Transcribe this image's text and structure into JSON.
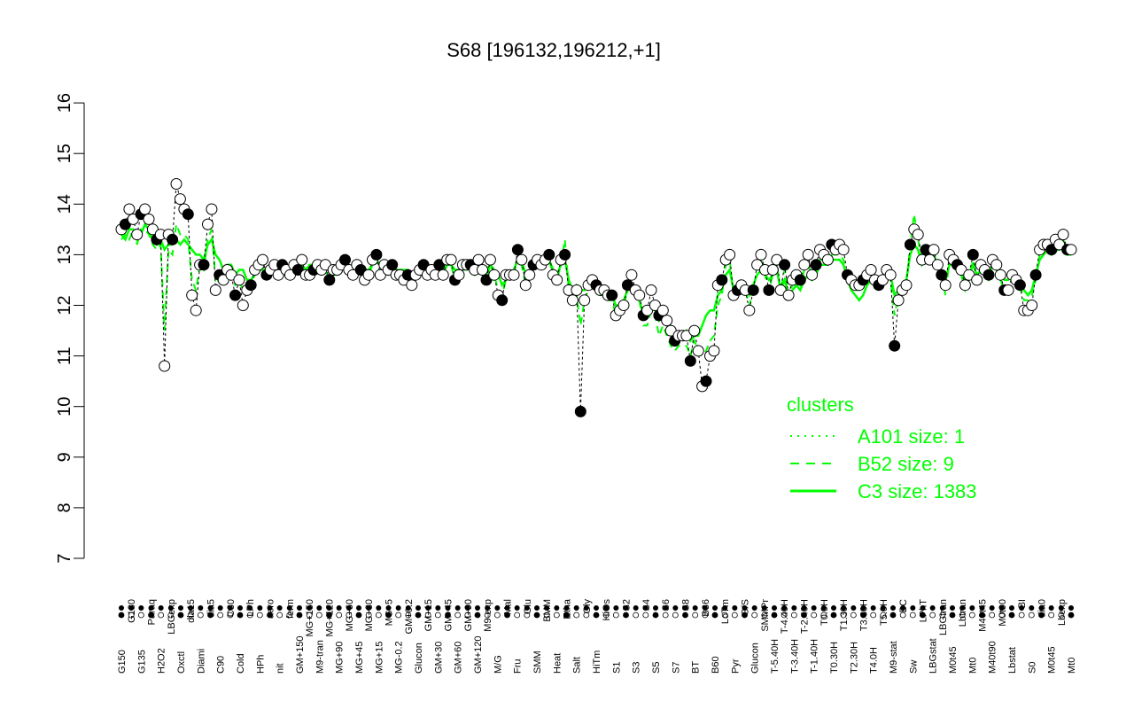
{
  "chart_data": {
    "type": "scatter",
    "title": "S68 [196132,196212,+1]",
    "xlabel": "",
    "ylabel": "",
    "ylim": [
      7,
      16
    ],
    "yticks": [
      7,
      8,
      9,
      10,
      11,
      12,
      13,
      14,
      15,
      16
    ],
    "grid": false,
    "point_colors": {
      "open": "#ffffff",
      "filled": "#000000",
      "edge": "#000000"
    },
    "line_color": "#00ff00",
    "xtick_labels": [
      "G150",
      "G180",
      "G135",
      "Paraq",
      "H2O2",
      "LBGexp",
      "Oxctl",
      "dia15",
      "Diami",
      "dia5",
      "C90",
      "C30",
      "Cold",
      "LPh",
      "HPh",
      "aero",
      "nit",
      "ferm",
      "GM+150",
      "MG+150",
      "M9-tran",
      "MG+120",
      "MG+90",
      "MG+60",
      "MG+45",
      "MG+30",
      "MG+15",
      "MG+5",
      "MG-0.2",
      "GM+0.2",
      "Glucon",
      "GM+15",
      "GM+30",
      "GM+45",
      "GM+60",
      "GM+90",
      "GM+120",
      "M9-exp",
      "M/G",
      "Mal",
      "Fru",
      "Glu",
      "SMM",
      "BMM",
      "Heat",
      "Etha",
      "Salt",
      "Gly",
      "HiTm",
      "HiOs",
      "S1",
      "S2",
      "S3",
      "S4",
      "S5",
      "S6",
      "S7",
      "S8",
      "BT",
      "B36",
      "B60",
      "LoTm",
      "Pyr",
      "G/S",
      "Glucon",
      "SMMPr",
      "T-5.40H",
      "T-4.40H",
      "T-3.40H",
      "T-2.40H",
      "T-1.40H",
      "T0.0H",
      "T0.30H",
      "T1.30H",
      "T2.30H",
      "T3.30H",
      "T4.0H",
      "T5.0H",
      "M9-stat",
      "BC",
      "Sw",
      "LPhT",
      "LBGstat",
      "LBGtran",
      "M0t45",
      "Lbtran",
      "Mt0",
      "M40t45",
      "M40t90",
      "M0t90",
      "Lbstat",
      "BI",
      "S0",
      "dia0",
      "M0t45",
      "Lbexp",
      "Mt0"
    ],
    "legend": {
      "title": "clusters",
      "position": "right",
      "entries": [
        {
          "label": "A101 size: 1",
          "style": "dotted"
        },
        {
          "label": "B52 size: 9",
          "style": "dashed"
        },
        {
          "label": "C3 size: 1383",
          "style": "solid"
        }
      ]
    },
    "series": [
      {
        "marker": "open-and-filled circles",
        "values": [
          13.5,
          13.6,
          13.9,
          13.7,
          13.4,
          13.8,
          13.9,
          13.7,
          13.5,
          13.3,
          13.4,
          10.8,
          13.4,
          13.3,
          14.4,
          14.1,
          13.9,
          13.8,
          12.2,
          11.9,
          12.8,
          12.8,
          13.6,
          13.9,
          12.3,
          12.6,
          12.5,
          12.7,
          12.6,
          12.2,
          12.5,
          12.0,
          12.3,
          12.4,
          12.7,
          12.8,
          12.9,
          12.6,
          12.7,
          12.8,
          12.6,
          12.8,
          12.7,
          12.6,
          12.8,
          12.7,
          12.9,
          12.6,
          12.6,
          12.7,
          12.8,
          12.7,
          12.8,
          12.5,
          12.7,
          12.7,
          12.8,
          12.9,
          12.7,
          12.6,
          12.8,
          12.7,
          12.5,
          12.6,
          12.9,
          13.0,
          12.6,
          12.8,
          12.7,
          12.8,
          12.6,
          12.6,
          12.5,
          12.6,
          12.4,
          12.6,
          12.7,
          12.8,
          12.6,
          12.7,
          12.6,
          12.8,
          12.6,
          12.9,
          12.9,
          12.5,
          12.6,
          12.8,
          12.8,
          12.8,
          12.7,
          12.9,
          12.7,
          12.5,
          12.9,
          12.6,
          12.2,
          12.1,
          12.6,
          12.6,
          12.6,
          13.1,
          12.9,
          12.4,
          12.6,
          12.8,
          12.9,
          12.8,
          12.9,
          13.0,
          12.6,
          12.5,
          12.9,
          13.0,
          12.3,
          12.1,
          12.3,
          9.9,
          12.1,
          12.4,
          12.5,
          12.4,
          12.3,
          12.3,
          12.2,
          12.2,
          11.8,
          11.9,
          12.0,
          12.4,
          12.6,
          12.3,
          12.2,
          11.8,
          11.9,
          12.3,
          12.0,
          11.8,
          11.9,
          11.7,
          11.5,
          11.3,
          11.4,
          11.4,
          11.4,
          10.9,
          11.5,
          11.1,
          10.4,
          10.5,
          11.0,
          11.1,
          12.4,
          12.5,
          12.9,
          13.0,
          12.2,
          12.3,
          12.4,
          12.3,
          11.9,
          12.3,
          12.8,
          13.0,
          12.7,
          12.3,
          12.7,
          12.9,
          12.3,
          12.8,
          12.2,
          12.5,
          12.6,
          12.5,
          12.8,
          13.0,
          12.6,
          12.8,
          13.1,
          13.0,
          12.9,
          13.2,
          13.1,
          13.2,
          13.1,
          12.6,
          12.5,
          12.4,
          12.4,
          12.5,
          12.6,
          12.7,
          12.5,
          12.4,
          12.5,
          12.7,
          12.6,
          11.2,
          12.1,
          12.3,
          12.4,
          13.2,
          13.5,
          13.4,
          12.9,
          13.1,
          12.9,
          13.1,
          12.8,
          12.6,
          12.4,
          13.0,
          12.9,
          12.8,
          12.7,
          12.4,
          12.6,
          13.0,
          12.5,
          12.8,
          12.7,
          12.6,
          12.9,
          12.8,
          12.6,
          12.3,
          12.3,
          12.6,
          12.5,
          12.4,
          11.9,
          11.9,
          12.0,
          12.6,
          13.1,
          13.2,
          13.2,
          13.1,
          13.3,
          13.2,
          13.4,
          13.1,
          13.1
        ]
      },
      {
        "name": "C3 size: 1383",
        "style": "solid",
        "values": [
          13.4,
          13.3,
          13.5,
          13.5,
          13.3,
          13.4,
          13.6,
          13.5,
          13.3,
          13.2,
          13.3,
          13.1,
          13.2,
          13.2,
          13.3,
          13.2,
          13.3,
          13.2,
          13.1,
          13.0,
          13.0,
          12.9,
          13.2,
          13.3,
          13.0,
          12.9,
          12.7,
          12.8,
          12.8,
          12.6,
          12.7,
          12.7,
          12.5,
          12.5,
          12.6,
          12.7,
          12.7,
          12.7,
          12.8,
          12.7,
          12.7,
          12.8,
          12.8,
          12.7,
          12.8,
          12.8,
          12.8,
          12.7,
          12.8,
          12.8,
          12.8,
          12.8,
          12.8,
          12.7,
          12.7,
          12.8,
          12.8,
          12.8,
          12.8,
          12.7,
          12.8,
          12.8,
          12.7,
          12.7,
          12.8,
          12.9,
          12.8,
          12.8,
          12.8,
          12.8,
          12.7,
          12.7,
          12.7,
          12.7,
          12.6,
          12.7,
          12.7,
          12.7,
          12.7,
          12.7,
          12.7,
          12.8,
          12.7,
          12.8,
          12.8,
          12.7,
          12.7,
          12.8,
          12.8,
          12.8,
          12.7,
          12.8,
          12.8,
          12.7,
          12.8,
          12.7,
          12.6,
          12.4,
          12.5,
          12.6,
          12.7,
          12.9,
          12.9,
          12.6,
          12.6,
          12.8,
          12.8,
          12.8,
          12.8,
          12.9,
          12.7,
          12.6,
          12.8,
          12.9,
          12.5,
          12.3,
          12.4,
          12.3,
          12.3,
          12.4,
          12.5,
          12.4,
          12.4,
          12.3,
          12.3,
          12.2,
          12.0,
          12.0,
          12.1,
          12.3,
          12.3,
          12.2,
          12.1,
          11.8,
          11.9,
          12.0,
          11.9,
          11.7,
          11.8,
          11.6,
          11.5,
          11.4,
          11.4,
          11.4,
          11.5,
          11.3,
          11.4,
          11.4,
          11.6,
          11.8,
          11.9,
          11.9,
          12.2,
          12.3,
          12.6,
          12.7,
          12.3,
          12.2,
          12.3,
          12.3,
          12.2,
          12.4,
          12.6,
          12.7,
          12.6,
          12.5,
          12.6,
          12.7,
          12.3,
          12.5,
          12.2,
          12.3,
          12.4,
          12.3,
          12.5,
          12.6,
          12.5,
          12.6,
          12.8,
          12.8,
          12.8,
          12.9,
          12.9,
          12.9,
          12.8,
          12.5,
          12.3,
          12.2,
          12.1,
          12.2,
          12.4,
          12.5,
          12.5,
          12.4,
          12.5,
          12.6,
          12.6,
          12.2,
          12.3,
          12.4,
          12.5,
          13.0,
          13.2,
          13.1,
          12.8,
          12.9,
          12.9,
          13.0,
          12.8,
          12.6,
          12.5,
          12.8,
          12.8,
          12.7,
          12.6,
          12.5,
          12.6,
          12.8,
          12.6,
          12.7,
          12.6,
          12.6,
          12.8,
          12.7,
          12.6,
          12.5,
          12.5,
          12.6,
          12.5,
          12.5,
          12.3,
          12.2,
          12.3,
          12.6,
          12.9,
          13.0,
          13.1,
          13.0,
          13.1,
          13.1,
          13.2,
          13.0,
          13.0
        ]
      },
      {
        "name": "B52 size: 9",
        "style": "dashed",
        "values": [
          13.3,
          13.4,
          13.3,
          13.5,
          13.2,
          13.5,
          13.5,
          13.4,
          13.2,
          13.1,
          13.2,
          11.5,
          13.1,
          13.0,
          13.6,
          13.4,
          13.4,
          13.3,
          12.5,
          12.3,
          12.8,
          12.7,
          13.3,
          13.5,
          12.5,
          12.6,
          12.5,
          12.6,
          12.5,
          12.4,
          12.5,
          12.3,
          12.4,
          12.4,
          12.6,
          12.7,
          12.8,
          12.6,
          12.7,
          12.7,
          12.6,
          12.7,
          12.7,
          12.6,
          12.7,
          12.7,
          12.8,
          12.6,
          12.6,
          12.7,
          12.7,
          12.7,
          12.7,
          12.5,
          12.6,
          12.6,
          12.7,
          12.8,
          12.6,
          12.6,
          12.7,
          12.6,
          12.5,
          12.6,
          12.8,
          12.9,
          12.6,
          12.7,
          12.6,
          12.7,
          12.6,
          12.6,
          12.5,
          12.6,
          12.4,
          12.6,
          12.6,
          12.7,
          12.6,
          12.6,
          12.6,
          12.7,
          12.6,
          12.8,
          12.8,
          12.5,
          12.6,
          12.7,
          12.7,
          12.7,
          12.6,
          12.8,
          12.6,
          12.5,
          12.8,
          12.6,
          12.3,
          12.2,
          12.5,
          12.6,
          12.6,
          13.0,
          12.8,
          12.4,
          12.5,
          12.7,
          12.8,
          12.8,
          12.8,
          12.9,
          12.6,
          12.5,
          12.8,
          13.3,
          12.3,
          12.1,
          12.2,
          11.6,
          12.1,
          12.3,
          12.4,
          12.3,
          12.2,
          12.2,
          12.1,
          12.1,
          11.8,
          11.9,
          12.0,
          12.3,
          12.4,
          12.2,
          12.1,
          11.6,
          11.6,
          11.9,
          11.8,
          11.4,
          11.6,
          11.4,
          11.2,
          11.1,
          11.2,
          11.2,
          11.2,
          11.0,
          11.3,
          11.1,
          11.0,
          11.1,
          11.3,
          11.4,
          12.0,
          12.2,
          12.8,
          12.9,
          12.2,
          12.2,
          12.3,
          12.3,
          12.0,
          12.3,
          12.7,
          12.9,
          12.6,
          12.3,
          12.6,
          12.8,
          12.3,
          12.7,
          12.2,
          12.4,
          12.5,
          12.4,
          12.7,
          12.8,
          12.6,
          12.7,
          12.9,
          12.9,
          12.8,
          13.0,
          13.0,
          13.0,
          12.9,
          12.5,
          12.4,
          12.3,
          12.3,
          12.4,
          12.5,
          12.6,
          12.4,
          12.4,
          12.5,
          12.6,
          12.5,
          11.8,
          12.2,
          12.3,
          12.4,
          13.2,
          13.8,
          13.3,
          12.9,
          13.0,
          12.9,
          13.0,
          12.7,
          12.6,
          12.2,
          12.9,
          12.8,
          12.7,
          12.6,
          12.3,
          12.5,
          12.9,
          12.5,
          12.7,
          12.6,
          12.5,
          12.8,
          12.7,
          12.5,
          12.3,
          12.3,
          12.5,
          12.4,
          12.4,
          12.1,
          12.1,
          12.2,
          12.5,
          13.0,
          13.2,
          13.2,
          13.1,
          13.2,
          13.1,
          13.3,
          13.1,
          13.0
        ]
      }
    ]
  }
}
